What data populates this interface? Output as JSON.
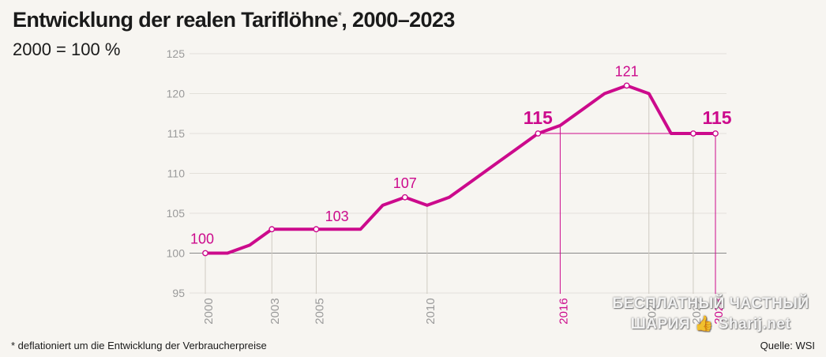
{
  "header": {
    "title": "Entwicklung der realen Tariflöhne",
    "title_marker": "*",
    "title_suffix": ", 2000–2023",
    "subtitle": "2000 = 100 %"
  },
  "footer": {
    "footnote": "* deflationiert um die Entwicklung der Verbraucherpreise",
    "source": "Quelle: WSI"
  },
  "watermark": {
    "line1": "БЕСПЛАТНЫЙ ЧАСТНЫЙ",
    "line2": "ШАРИЯ 👍 Sharij.net"
  },
  "colors": {
    "line": "#cc0a8c",
    "highlight": "#cc0a8c",
    "grid": "#e3e0da",
    "baseline": "#888888",
    "axis_text": "#9a9a9a",
    "background": "#f7f5f1"
  },
  "chart_data": {
    "type": "line",
    "title": "Entwicklung der realen Tariflöhne*, 2000–2023",
    "subtitle": "2000 = 100 %",
    "x": [
      2000,
      2001,
      2002,
      2003,
      2004,
      2005,
      2006,
      2007,
      2008,
      2009,
      2010,
      2011,
      2012,
      2013,
      2014,
      2015,
      2016,
      2017,
      2018,
      2019,
      2020,
      2021,
      2022,
      2023
    ],
    "series": [
      {
        "values": [
          100,
          100,
          101,
          103,
          103,
          103,
          103,
          103,
          106,
          107,
          106,
          107,
          109,
          111,
          113,
          115,
          116,
          118,
          120,
          121,
          120,
          115,
          115,
          115
        ]
      }
    ],
    "ylim": [
      95,
      125
    ],
    "y_ticks": [
      95,
      100,
      105,
      110,
      115,
      120,
      125
    ],
    "x_tick_labels": [
      "2000",
      "2003",
      "2005",
      "2010",
      "2016",
      "2020",
      "2022",
      "2023"
    ],
    "highlighted_years": [
      "2016",
      "2023"
    ],
    "annotations": [
      {
        "x": 2000,
        "y": 100,
        "label": "100",
        "bold": false
      },
      {
        "x": 2003,
        "y": 103,
        "label": "103",
        "bold": false
      },
      {
        "x": 2009,
        "y": 107,
        "label": "107",
        "bold": false
      },
      {
        "x": 2015,
        "y": 115,
        "label": "115",
        "bold": true
      },
      {
        "x": 2019,
        "y": 121,
        "label": "121",
        "bold": false
      },
      {
        "x": 2023,
        "y": 115,
        "label": "115",
        "bold": true
      }
    ],
    "markers": [
      2000,
      2003,
      2005,
      2009,
      2015,
      2019,
      2022,
      2023
    ],
    "reference_line": {
      "y": 115,
      "from": "2016",
      "to": "2023"
    },
    "baseline": 100,
    "grid": true
  }
}
